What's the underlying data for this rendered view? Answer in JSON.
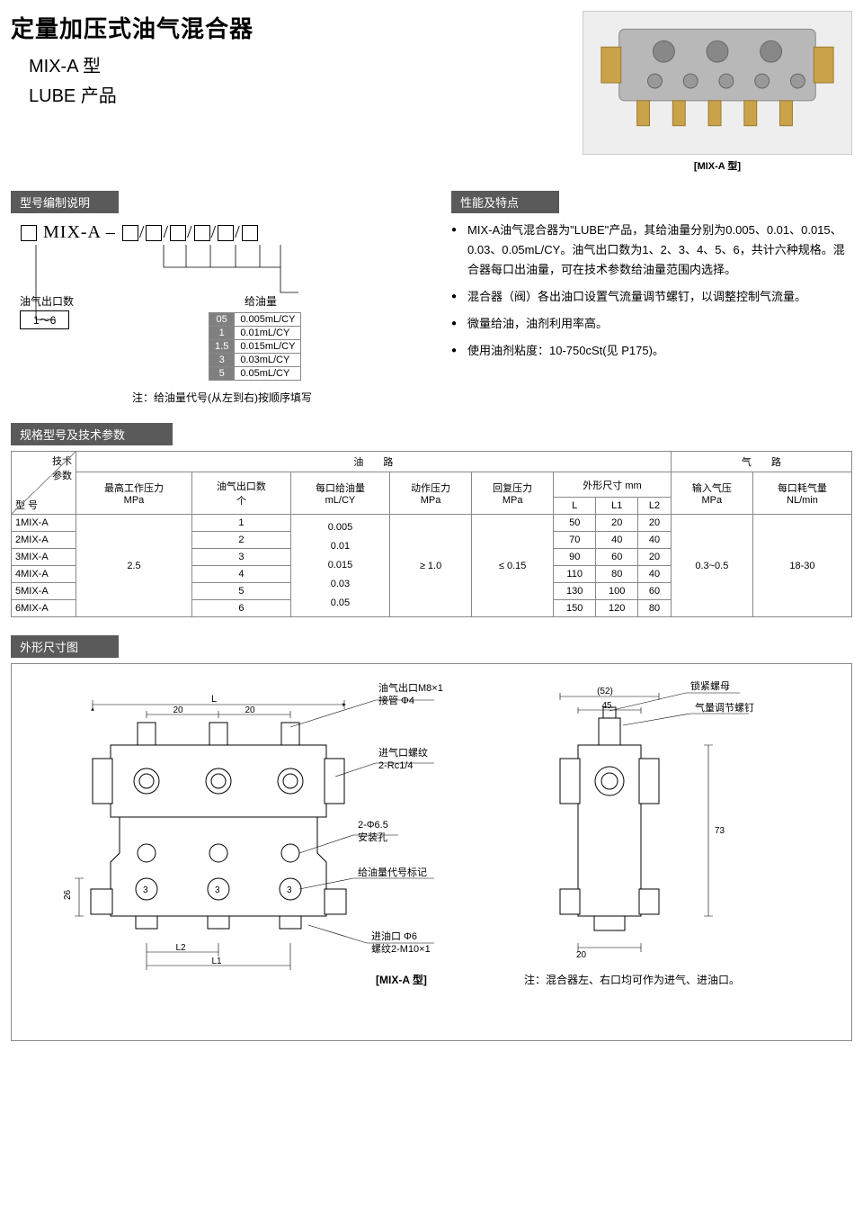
{
  "title": "定量加压式油气混合器",
  "subtitle1": "MIX-A 型",
  "subtitle2": "LUBE 产品",
  "product_caption": "[MIX-A 型]",
  "sections": {
    "model_desc": "型号编制说明",
    "features": "性能及特点",
    "specs": "规格型号及技术参数",
    "dimensions": "外形尺寸图"
  },
  "model": {
    "prefix": "MIX-A",
    "outlet_label": "油气出口数",
    "outlet_range": "1～6",
    "oil_amount_label": "给油量",
    "oil_codes": [
      {
        "code": "05",
        "val": "0.005mL/CY"
      },
      {
        "code": "1",
        "val": "0.01mL/CY"
      },
      {
        "code": "1.5",
        "val": "0.015mL/CY"
      },
      {
        "code": "3",
        "val": "0.03mL/CY"
      },
      {
        "code": "5",
        "val": "0.05mL/CY"
      }
    ],
    "note": "注：给油量代号(从左到右)按顺序填写"
  },
  "features_list": [
    "MIX-A油气混合器为\"LUBE\"产品，其给油量分别为0.005、0.01、0.015、0.03、0.05mL/CY。油气出口数为1、2、3、4、5、6，共计六种规格。混合器每口出油量，可在技术参数给油量范围内选择。",
    "混合器（阀）各出油口设置气流量调节螺钉，以调整控制气流量。",
    "微量给油，油剂利用率高。",
    "使用油剂粘度：10-750cSt(见 P175)。"
  ],
  "spec_headers": {
    "corner_top": "技术\n参数",
    "corner_bottom": "型 号",
    "oil_path": "油　　路",
    "air_path": "气　　路",
    "max_pressure": "最高工作压力\nMPa",
    "outlets": "油气出口数\n个",
    "per_outlet": "每口给油量\nmL/CY",
    "action_p": "动作压力\nMPa",
    "return_p": "回复压力\nMPa",
    "dims": "外形尺寸 mm",
    "L": "L",
    "L1": "L1",
    "L2": "L2",
    "input_air": "输入气压\nMPa",
    "air_consume": "每口耗气量\nNL/min"
  },
  "spec_rows": [
    {
      "model": "1MIX-A",
      "outlets": "1",
      "L": "50",
      "L1": "20",
      "L2": "20"
    },
    {
      "model": "2MIX-A",
      "outlets": "2",
      "L": "70",
      "L1": "40",
      "L2": "40"
    },
    {
      "model": "3MIX-A",
      "outlets": "3",
      "L": "90",
      "L1": "60",
      "L2": "20"
    },
    {
      "model": "4MIX-A",
      "outlets": "4",
      "L": "110",
      "L1": "80",
      "L2": "40"
    },
    {
      "model": "5MIX-A",
      "outlets": "5",
      "L": "130",
      "L1": "100",
      "L2": "60"
    },
    {
      "model": "6MIX-A",
      "outlets": "6",
      "L": "150",
      "L1": "120",
      "L2": "80"
    }
  ],
  "spec_common": {
    "max_pressure": "2.5",
    "per_outlet": "0.005\n0.01\n0.015\n0.03\n0.05",
    "action_p": "≥ 1.0",
    "return_p": "≤ 0.15",
    "input_air": "0.3~0.5",
    "air_consume": "18-30"
  },
  "drawing": {
    "labels": {
      "outlet": "油气出口M8×1\n接管 Φ4",
      "air_inlet": "进气口螺纹\n2-Rc1/4",
      "mount_hole": "2-Φ6.5\n安装孔",
      "oil_code": "给油量代号标记",
      "oil_inlet": "进油口 Φ6\n螺纹2-M10×1",
      "lock_nut": "锁紧螺母",
      "adjust_screw": "气量调节螺钉",
      "caption": "[MIX-A 型]",
      "note": "注：混合器左、右口均可作为进气、进油口。"
    },
    "dims": {
      "L": "L",
      "d20a": "20",
      "d20b": "20",
      "L1": "L1",
      "L2": "L2",
      "d26": "26",
      "d3": "3",
      "d52": "(52)",
      "d45": "45",
      "d73": "73",
      "d20c": "20"
    }
  },
  "colors": {
    "bar_bg": "#5a5a5a",
    "border": "#888888",
    "code_bg": "#808080"
  }
}
